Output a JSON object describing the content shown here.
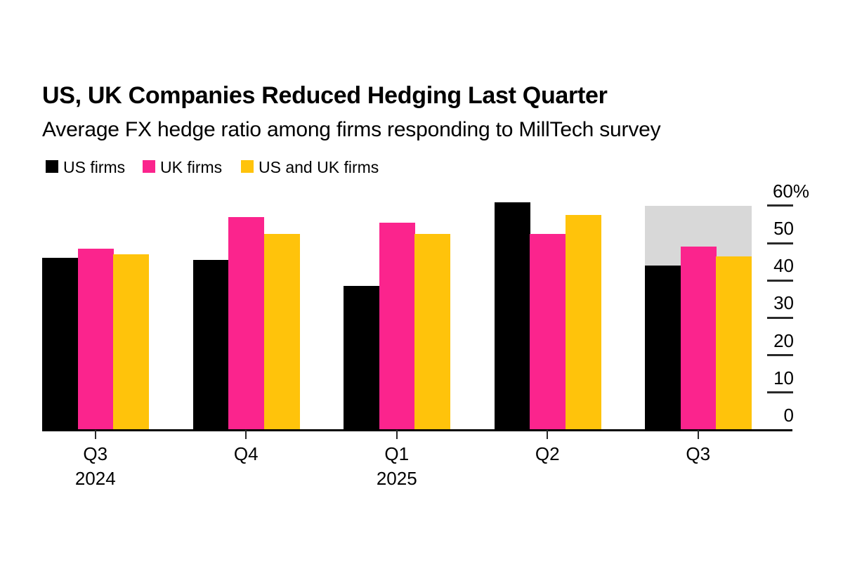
{
  "chart": {
    "title": "US, UK Companies Reduced Hedging Last Quarter",
    "subtitle": "Average FX hedge ratio among firms responding to MillTech survey"
  },
  "chart_data": {
    "type": "bar",
    "categories": [
      "Q3",
      "Q4",
      "Q1",
      "Q2",
      "Q3"
    ],
    "category_sublabels": [
      "2024",
      "",
      "2025",
      "",
      ""
    ],
    "series": [
      {
        "name": "US firms",
        "color": "#000000",
        "values": [
          46,
          45.5,
          38.5,
          61,
          44
        ]
      },
      {
        "name": "UK firms",
        "color": "#FB248D",
        "values": [
          48.5,
          57,
          55.5,
          52.5,
          49
        ]
      },
      {
        "name": "US and UK firms",
        "color": "#FFC30B",
        "values": [
          47,
          52.5,
          52.5,
          57.5,
          46.5
        ]
      }
    ],
    "title": "US, UK Companies Reduced Hedging Last Quarter",
    "subtitle": "Average FX hedge ratio among firms responding to MillTech survey",
    "xlabel": "",
    "ylabel": "",
    "y_ticks": [
      0,
      10,
      20,
      30,
      40,
      50,
      60
    ],
    "y_top_tick_label": "60%",
    "ylim": [
      0,
      60
    ],
    "grid": false,
    "legend_position": "top-left",
    "axis_side": "right",
    "highlight": {
      "category_index": 4,
      "color": "#D8D8D8",
      "to_value": 60
    },
    "axis_color": "#2a2a2a",
    "baseline_color": "#000000"
  }
}
